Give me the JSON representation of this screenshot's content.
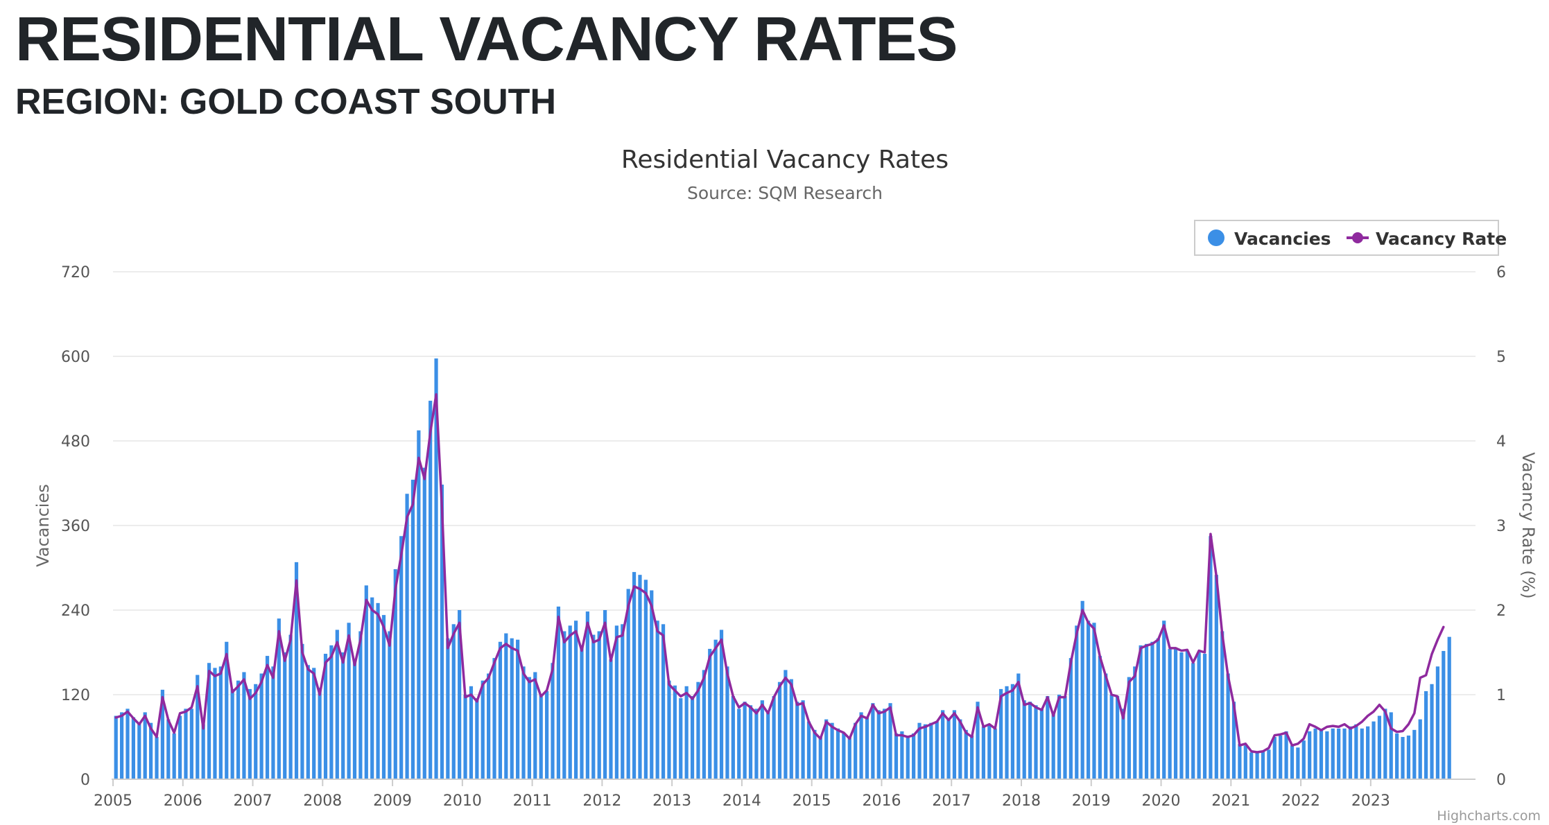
{
  "page": {
    "title": "RESIDENTIAL VACANCY RATES",
    "subtitle": "REGION: GOLD COAST SOUTH"
  },
  "credits": "Highcharts.com",
  "colors": {
    "bars": "#3b8fe6",
    "line": "#8f2a9e",
    "grid": "#e6e6e6",
    "text": "#333333",
    "axis_text": "#555555"
  },
  "chart_data": {
    "type": "bar+line",
    "title": "Residential Vacancy Rates",
    "subtitle": "Source: SQM Research",
    "x_start": "2005-01",
    "x_step": "month",
    "xticks": [
      "2005",
      "2006",
      "2007",
      "2008",
      "2009",
      "2010",
      "2011",
      "2012",
      "2013",
      "2014",
      "2015",
      "2016",
      "2017",
      "2018",
      "2019",
      "2020",
      "2021",
      "2022",
      "2023"
    ],
    "y_left": {
      "label": "Vacancies",
      "min": 0,
      "max": 720,
      "ticks": [
        "0",
        "120",
        "240",
        "360",
        "480",
        "600",
        "720"
      ]
    },
    "y_right": {
      "label": "Vacancy Rate (%)",
      "min": 0,
      "max": 6,
      "ticks": [
        "0",
        "1",
        "2",
        "3",
        "4",
        "5",
        "6"
      ]
    },
    "legend": {
      "position": "top-right",
      "items": [
        "Vacancies",
        "Vacancy Rate"
      ]
    },
    "series": [
      {
        "name": "Vacancies",
        "type": "column",
        "axis": "left",
        "values": [
          90,
          95,
          100,
          88,
          80,
          95,
          80,
          60,
          127,
          85,
          65,
          90,
          100,
          100,
          148,
          78,
          165,
          158,
          160,
          195,
          128,
          140,
          152,
          128,
          135,
          150,
          175,
          160,
          228,
          180,
          205,
          308,
          192,
          162,
          158,
          130,
          178,
          190,
          212,
          180,
          222,
          170,
          210,
          275,
          258,
          250,
          233,
          210,
          298,
          345,
          405,
          425,
          495,
          442,
          537,
          597,
          418,
          200,
          220,
          240,
          120,
          132,
          115,
          140,
          150,
          172,
          195,
          207,
          200,
          198,
          160,
          145,
          152,
          120,
          125,
          165,
          245,
          210,
          218,
          225,
          190,
          238,
          205,
          210,
          240,
          170,
          218,
          220,
          270,
          294,
          290,
          283,
          268,
          225,
          220,
          140,
          133,
          115,
          132,
          118,
          138,
          155,
          185,
          198,
          212,
          160,
          118,
          100,
          110,
          105,
          100,
          112,
          95,
          118,
          138,
          155,
          142,
          110,
          112,
          82,
          70,
          60,
          85,
          80,
          72,
          65,
          60,
          80,
          95,
          88,
          108,
          98,
          100,
          108,
          65,
          68,
          62,
          65,
          80,
          78,
          80,
          82,
          98,
          85,
          98,
          85,
          70,
          62,
          110,
          75,
          78,
          72,
          128,
          132,
          135,
          150,
          112,
          110,
          105,
          100,
          118,
          92,
          120,
          118,
          172,
          218,
          253,
          225,
          222,
          175,
          150,
          120,
          118,
          100,
          145,
          160,
          190,
          192,
          195,
          200,
          225,
          185,
          185,
          180,
          182,
          165,
          180,
          178,
          345,
          290,
          210,
          150,
          110,
          50,
          48,
          38,
          38,
          40,
          42,
          60,
          62,
          68,
          48,
          45,
          55,
          68,
          72,
          70,
          68,
          72,
          72,
          72,
          75,
          78,
          72,
          75,
          82,
          90,
          100,
          95,
          65,
          60,
          62,
          70,
          85,
          125,
          135,
          160,
          182,
          202
        ]
      },
      {
        "name": "Vacancy Rate",
        "type": "line",
        "axis": "right",
        "values": [
          0.73,
          0.75,
          0.8,
          0.72,
          0.65,
          0.75,
          0.6,
          0.5,
          0.97,
          0.7,
          0.55,
          0.78,
          0.8,
          0.85,
          1.1,
          0.6,
          1.28,
          1.22,
          1.25,
          1.48,
          1.03,
          1.1,
          1.18,
          0.95,
          1.02,
          1.15,
          1.35,
          1.2,
          1.75,
          1.4,
          1.65,
          2.35,
          1.5,
          1.3,
          1.25,
          1.0,
          1.38,
          1.45,
          1.62,
          1.38,
          1.7,
          1.35,
          1.65,
          2.12,
          2.0,
          1.95,
          1.8,
          1.58,
          2.25,
          2.65,
          3.1,
          3.25,
          3.8,
          3.55,
          4.1,
          4.55,
          3.2,
          1.55,
          1.72,
          1.85,
          0.97,
          1.0,
          0.92,
          1.12,
          1.2,
          1.38,
          1.55,
          1.6,
          1.55,
          1.52,
          1.25,
          1.15,
          1.18,
          0.98,
          1.05,
          1.3,
          1.92,
          1.62,
          1.7,
          1.75,
          1.52,
          1.85,
          1.62,
          1.65,
          1.85,
          1.4,
          1.68,
          1.7,
          2.05,
          2.28,
          2.25,
          2.2,
          2.05,
          1.75,
          1.7,
          1.12,
          1.05,
          0.98,
          1.02,
          0.95,
          1.05,
          1.2,
          1.45,
          1.55,
          1.65,
          1.25,
          0.98,
          0.85,
          0.9,
          0.85,
          0.78,
          0.88,
          0.78,
          0.97,
          1.1,
          1.2,
          1.12,
          0.88,
          0.9,
          0.68,
          0.55,
          0.48,
          0.68,
          0.62,
          0.58,
          0.55,
          0.48,
          0.65,
          0.75,
          0.72,
          0.88,
          0.78,
          0.8,
          0.85,
          0.52,
          0.52,
          0.5,
          0.52,
          0.6,
          0.62,
          0.65,
          0.68,
          0.78,
          0.7,
          0.78,
          0.68,
          0.55,
          0.5,
          0.85,
          0.62,
          0.65,
          0.6,
          0.98,
          1.02,
          1.05,
          1.15,
          0.88,
          0.9,
          0.85,
          0.82,
          0.97,
          0.75,
          0.97,
          0.97,
          1.38,
          1.72,
          2.0,
          1.85,
          1.78,
          1.45,
          1.22,
          1.0,
          0.98,
          0.72,
          1.15,
          1.22,
          1.55,
          1.58,
          1.6,
          1.65,
          1.82,
          1.55,
          1.55,
          1.52,
          1.53,
          1.38,
          1.52,
          1.5,
          2.9,
          2.4,
          1.72,
          1.22,
          0.88,
          0.4,
          0.42,
          0.33,
          0.32,
          0.33,
          0.37,
          0.52,
          0.53,
          0.55,
          0.4,
          0.42,
          0.48,
          0.65,
          0.62,
          0.58,
          0.62,
          0.63,
          0.62,
          0.65,
          0.6,
          0.63,
          0.68,
          0.75,
          0.8,
          0.88,
          0.8,
          0.6,
          0.56,
          0.57,
          0.65,
          0.78,
          1.2,
          1.23,
          1.48,
          1.65,
          1.8
        ]
      }
    ]
  }
}
